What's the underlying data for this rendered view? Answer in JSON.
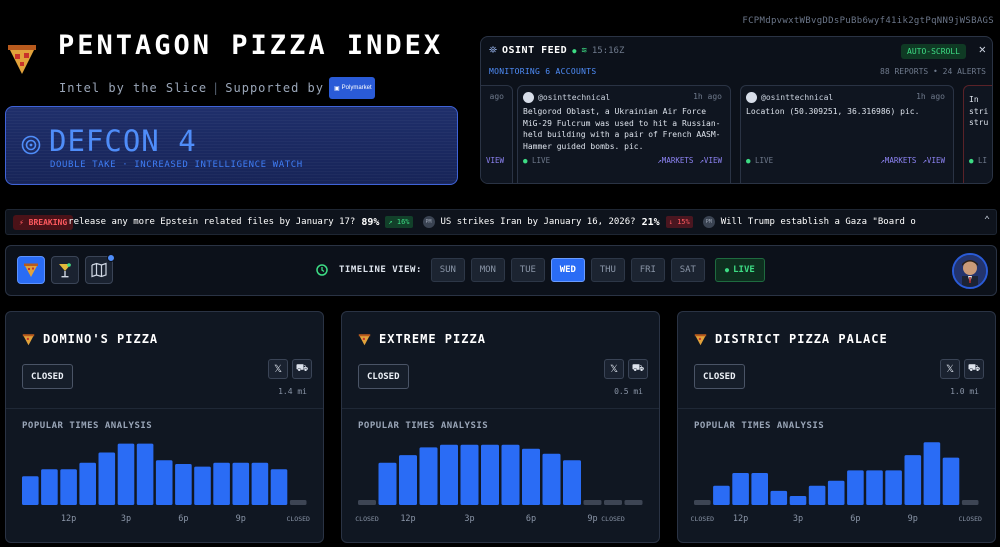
{
  "header": {
    "wallet": "FCPMdpvwxtWBvgDDsPuBb6wyf41ik2gtPqNN9jWSBAGS",
    "title": "PENTAGON PIZZA INDEX",
    "tagline": "Intel by the Slice",
    "supported_by": "Supported by",
    "sponsor": "Polymarket"
  },
  "defcon": {
    "level": "DEFCON 4",
    "subtitle": "DOUBLE TAKE · INCREASED INTELLIGENCE WATCH",
    "color": "#4f8df9"
  },
  "osint": {
    "title": "OSINT FEED",
    "time": "15:16Z",
    "autoscroll": "AUTO-SCROLL",
    "monitoring": "MONITORING 6 ACCOUNTS",
    "stats": "88 REPORTS • 24 ALERTS",
    "posts": [
      {
        "account": "",
        "ago": "ago",
        "body": "",
        "live": "",
        "markets": "",
        "view": "VIEW"
      },
      {
        "account": "@osinttechnical",
        "ago": "1h ago",
        "body": "Belgorod Oblast, a Ukrainian Air Force MiG-29 Fulcrum was used to hit a Russian-held building with a pair of French AASM-Hammer guided bombs. pic.",
        "live": "LIVE",
        "markets": "↗MARKETS",
        "view": "↗VIEW"
      },
      {
        "account": "@osinttechnical",
        "ago": "1h ago",
        "body": "Location (50.309251, 36.316986) pic.",
        "live": "LIVE",
        "markets": "↗MARKETS",
        "view": "↗VIEW"
      },
      {
        "account": "",
        "ago": "",
        "body": "In\nstri\nstru",
        "live": "LI",
        "markets": "",
        "view": ""
      }
    ]
  },
  "ticker": {
    "breaking": "BREAKING",
    "items": [
      {
        "text": "release any more Epstein related files by January 17?",
        "pct": "89%",
        "change": "↗ 16%",
        "dir": "up",
        "icon": "PM"
      },
      {
        "text": "US strikes Iran by January 16, 2026?",
        "pct": "21%",
        "change": "↓ 15%",
        "dir": "down",
        "icon": "PM"
      },
      {
        "text": "Will Trump establish a Gaza \"Board o",
        "pct": "",
        "change": "",
        "dir": "",
        "icon": "PM"
      }
    ]
  },
  "toolbar": {
    "tools": [
      "pizza-icon",
      "cocktail-icon",
      "map-icon"
    ],
    "timeline_label": "TIMELINE VIEW:",
    "days": [
      "SUN",
      "MON",
      "TUE",
      "WED",
      "THU",
      "FRI",
      "SAT"
    ],
    "active_day": "WED",
    "live": "LIVE"
  },
  "cards": [
    {
      "name": "DOMINO'S PIZZA",
      "status": "CLOSED",
      "distance": "1.4 mi",
      "section": "POPULAR TIMES ANALYSIS",
      "bars": [
        0.45,
        0.56,
        0.56,
        0.66,
        0.82,
        0.96,
        0.96,
        0.7,
        0.64,
        0.6,
        0.66,
        0.66,
        0.66,
        0.56,
        0.0
      ],
      "closed_flags": [
        false,
        false,
        false,
        false,
        false,
        false,
        false,
        false,
        false,
        false,
        false,
        false,
        false,
        false,
        true
      ],
      "labels": [
        {
          "i": 2,
          "t": "12p"
        },
        {
          "i": 5,
          "t": "3p"
        },
        {
          "i": 8,
          "t": "6p"
        },
        {
          "i": 11,
          "t": "9p"
        },
        {
          "i": 14,
          "t": "CLOSED"
        }
      ]
    },
    {
      "name": "EXTREME PIZZA",
      "status": "CLOSED",
      "distance": "0.5 mi",
      "section": "POPULAR TIMES ANALYSIS",
      "bars": [
        0.0,
        0.66,
        0.78,
        0.9,
        0.94,
        0.94,
        0.94,
        0.94,
        0.88,
        0.8,
        0.7,
        0.0,
        0.0,
        0.0
      ],
      "closed_flags": [
        true,
        false,
        false,
        false,
        false,
        false,
        false,
        false,
        false,
        false,
        false,
        true,
        true,
        true
      ],
      "labels": [
        {
          "i": 0,
          "t": "CLOSED"
        },
        {
          "i": 2,
          "t": "12p"
        },
        {
          "i": 5,
          "t": "3p"
        },
        {
          "i": 8,
          "t": "6p"
        },
        {
          "i": 11,
          "t": "9p"
        },
        {
          "i": 12,
          "t": "CLOSED"
        }
      ]
    },
    {
      "name": "DISTRICT PIZZA PALACE",
      "status": "CLOSED",
      "distance": "1.0 mi",
      "section": "POPULAR TIMES ANALYSIS",
      "bars": [
        0.0,
        0.3,
        0.5,
        0.5,
        0.22,
        0.14,
        0.3,
        0.38,
        0.54,
        0.54,
        0.54,
        0.78,
        0.98,
        0.74,
        0.0
      ],
      "closed_flags": [
        true,
        false,
        false,
        false,
        false,
        false,
        false,
        false,
        false,
        false,
        false,
        false,
        false,
        false,
        true
      ],
      "labels": [
        {
          "i": 0,
          "t": "CLOSED"
        },
        {
          "i": 2,
          "t": "12p"
        },
        {
          "i": 5,
          "t": "3p"
        },
        {
          "i": 8,
          "t": "6p"
        },
        {
          "i": 11,
          "t": "9p"
        },
        {
          "i": 14,
          "t": "CLOSED"
        }
      ]
    }
  ]
}
